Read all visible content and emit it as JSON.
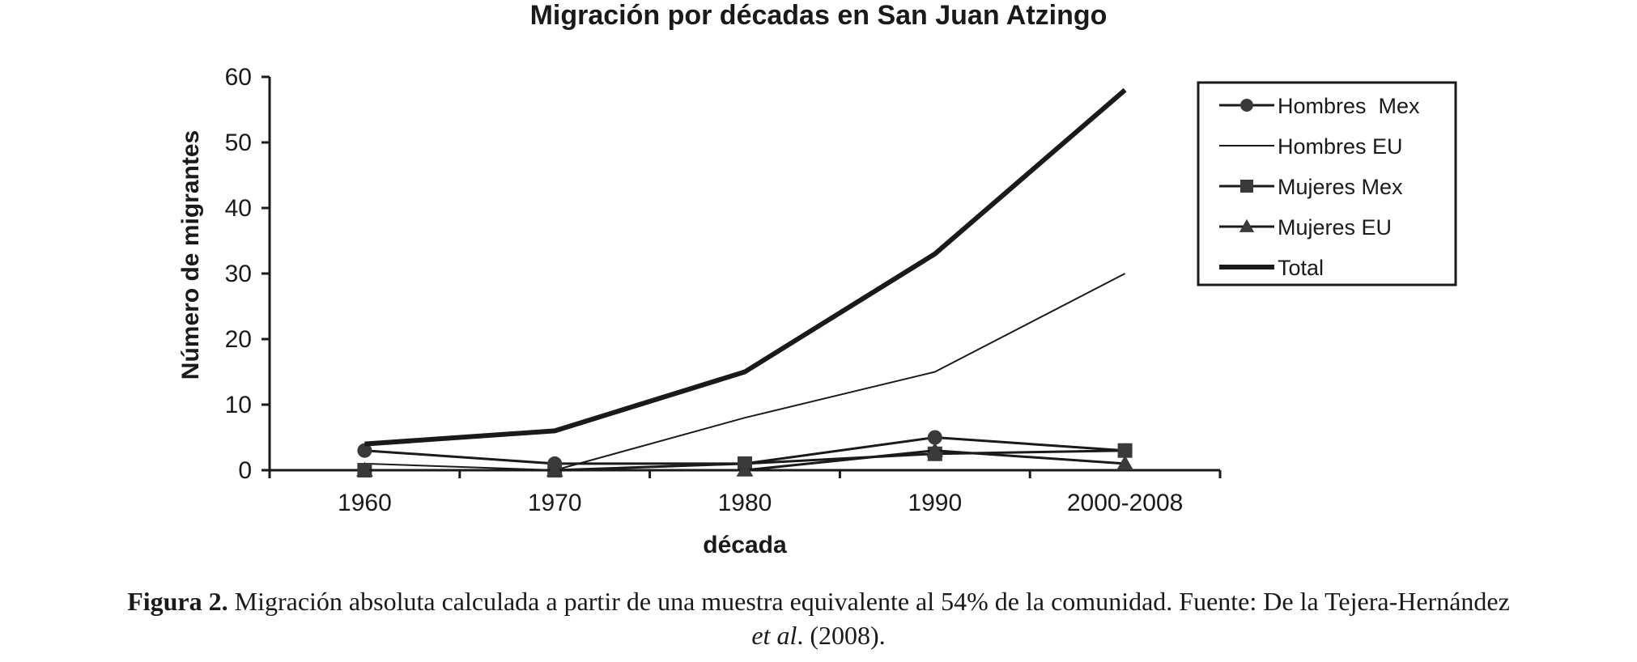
{
  "chart_data": {
    "type": "line",
    "title": "Migración por décadas en San Juan Atzingo",
    "xlabel": "década",
    "ylabel": "Número de migrantes",
    "categories": [
      "1960",
      "1970",
      "1980",
      "1990",
      "2000-2008"
    ],
    "ylim": [
      0,
      60
    ],
    "yticks": [
      0,
      10,
      20,
      30,
      40,
      50,
      60
    ],
    "grid": false,
    "legend_position": "top-right",
    "series": [
      {
        "name": "Hombres  Mex",
        "values": [
          3,
          1,
          1,
          5,
          3
        ],
        "marker": "circle",
        "style": "normal"
      },
      {
        "name": "Hombres EU",
        "values": [
          1,
          0,
          8,
          15,
          30
        ],
        "marker": "none",
        "style": "thin"
      },
      {
        "name": "Mujeres Mex",
        "values": [
          0,
          0,
          1,
          2.5,
          3
        ],
        "marker": "square",
        "style": "normal"
      },
      {
        "name": "Mujeres EU",
        "values": [
          0,
          0,
          0,
          3,
          1
        ],
        "marker": "triangle",
        "style": "normal"
      },
      {
        "name": "Total",
        "values": [
          4,
          6,
          15,
          33,
          58
        ],
        "marker": "none",
        "style": "thick"
      }
    ]
  },
  "caption": {
    "label": "Figura 2.",
    "text_main": " Migración absoluta calculada a partir de una muestra equivalente al 54% de la comunidad. Fuente: De la Tejera-Hernández",
    "text_italic": "et al",
    "text_end": ". (2008)."
  },
  "colors": {
    "line": "#1a1a1a",
    "marker": "#3a3a3a",
    "text": "#1a1a1a"
  }
}
